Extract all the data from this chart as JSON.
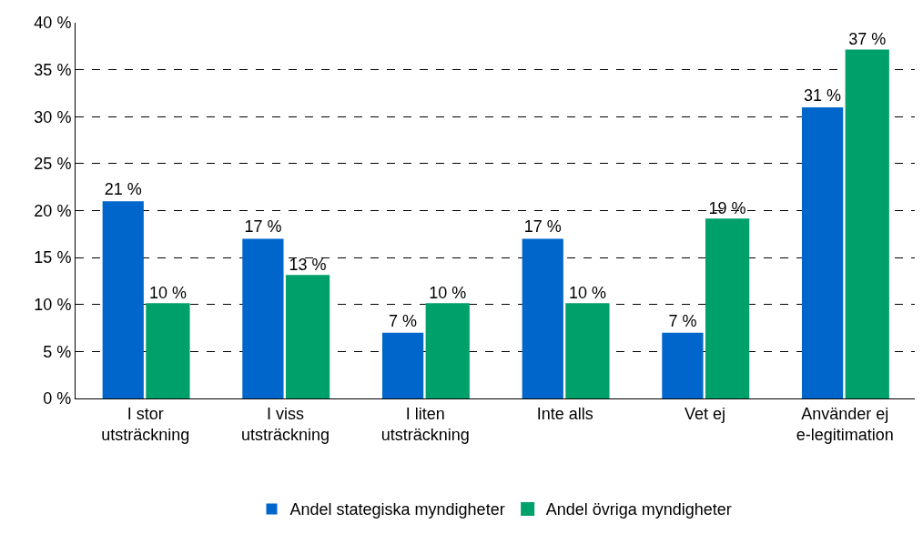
{
  "chart_data": {
    "type": "bar",
    "categories": [
      "I stor\nutsträckning",
      "I viss\nutsträckning",
      "I liten\nutsträckning",
      "Inte alls",
      "Vet ej",
      "Använder ej\ne-legitimation"
    ],
    "series": [
      {
        "name": "Andel stategiska myndigheter",
        "color": "#0066cc",
        "values": [
          21,
          17,
          7,
          17,
          7,
          31
        ],
        "value_labels": [
          "21 %",
          "17 %",
          "7 %",
          "17 %",
          "7 %",
          "31 %"
        ]
      },
      {
        "name": "Andel övriga myndigheter",
        "color": "#00a06a",
        "values": [
          10,
          13,
          10,
          10,
          19,
          37
        ],
        "value_labels": [
          "10 %",
          "13 %",
          "10 %",
          "10 %",
          "19 %",
          "37 %"
        ]
      }
    ],
    "ylim": [
      0,
      40
    ],
    "yticks": [
      {
        "value": 0,
        "label": "0 %"
      },
      {
        "value": 5,
        "label": "5 %"
      },
      {
        "value": 10,
        "label": "10 %"
      },
      {
        "value": 15,
        "label": "15 %"
      },
      {
        "value": 20,
        "label": "20 %"
      },
      {
        "value": 25,
        "label": "25 %"
      },
      {
        "value": 30,
        "label": "30 %"
      },
      {
        "value": 35,
        "label": "35 %"
      },
      {
        "value": 40,
        "label": "40 %"
      }
    ],
    "grid": "y",
    "legend": "bottom"
  }
}
